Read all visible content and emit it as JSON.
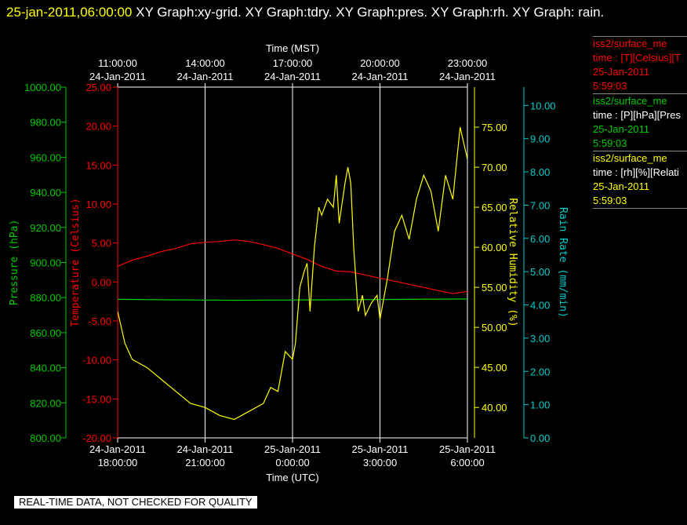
{
  "header": {
    "timestamp": "25-jan-2011,06:00:00",
    "title": "XY Graph:xy-grid.  XY Graph:tdry.  XY Graph:pres.  XY Graph:rh.  XY Graph: rain."
  },
  "footer": {
    "notice": "REAL-TIME DATA, NOT CHECKED FOR QUALITY"
  },
  "legend": [
    {
      "name": "iss2/surface_me",
      "units": "time : [T][Celsius][T",
      "date": "25-Jan-2011",
      "time": "5:59:03",
      "color": "#ff0000"
    },
    {
      "name": "iss2/surface_me",
      "units": "time : [P][hPa][Pres",
      "date": "25-Jan-2011",
      "time": "5:59:03",
      "color": "#00cc00"
    },
    {
      "name": "iss2/surface_me",
      "units": "time : [rh][%][Relati",
      "date": "25-Jan-2011",
      "time": "5:59:03",
      "color": "#ffff00"
    }
  ],
  "chart_data": {
    "type": "line",
    "title": "",
    "top_axis": {
      "label": "Time (MST)",
      "ticks": [
        {
          "date": "24-Jan-2011",
          "time": "11:00:00",
          "hours": 0
        },
        {
          "date": "24-Jan-2011",
          "time": "14:00:00",
          "hours": 3
        },
        {
          "date": "24-Jan-2011",
          "time": "17:00:00",
          "hours": 6
        },
        {
          "date": "24-Jan-2011",
          "time": "20:00:00",
          "hours": 9
        },
        {
          "date": "24-Jan-2011",
          "time": "23:00:00",
          "hours": 12
        }
      ]
    },
    "bottom_axis": {
      "label": "Time (UTC)",
      "ticks": [
        {
          "date": "24-Jan-2011",
          "time": "18:00:00",
          "hours": 0
        },
        {
          "date": "24-Jan-2011",
          "time": "21:00:00",
          "hours": 3
        },
        {
          "date": "25-Jan-2011",
          "time": "0:00:00",
          "hours": 6
        },
        {
          "date": "25-Jan-2011",
          "time": "3:00:00",
          "hours": 9
        },
        {
          "date": "25-Jan-2011",
          "time": "6:00:00",
          "hours": 12
        }
      ],
      "xlim_hours": [
        0,
        12
      ]
    },
    "grid": true,
    "axes": {
      "pressure": {
        "label": "Pressure (hPa)",
        "color": "#00cc00",
        "ylim": [
          800,
          1000
        ],
        "ticks": [
          "800.00",
          "820.00",
          "840.00",
          "860.00",
          "880.00",
          "900.00",
          "920.00",
          "940.00",
          "960.00",
          "980.00",
          "1000.00"
        ]
      },
      "temperature": {
        "label": "Temperature (Celsius)",
        "color": "#ff0000",
        "ylim": [
          -20,
          25
        ],
        "ticks": [
          "-20.00",
          "-15.00",
          "-10.00",
          "-5.00",
          "0.00",
          "5.00",
          "10.00",
          "15.00",
          "20.00",
          "25.00"
        ]
      },
      "humidity": {
        "label": "Relative Humidity (%)",
        "color": "#ffff00",
        "ylim": [
          36.2,
          80
        ],
        "ticks": [
          "40.00",
          "45.00",
          "50.00",
          "55.00",
          "60.00",
          "65.00",
          "70.00",
          "75.00"
        ]
      },
      "rain": {
        "label": "Rain Rate (mm/min)",
        "color": "#00cccc",
        "ylim": [
          0,
          10.55
        ],
        "ticks": [
          "0.00",
          "1.00",
          "2.00",
          "3.00",
          "4.00",
          "5.00",
          "6.00",
          "7.00",
          "8.00",
          "9.00",
          "10.00"
        ]
      }
    },
    "series": [
      {
        "name": "tdry",
        "axis": "temperature",
        "color": "#ff0000",
        "x": [
          0,
          0.5,
          1,
          1.5,
          2,
          2.5,
          3,
          3.5,
          4,
          4.5,
          5,
          5.5,
          6,
          6.5,
          7,
          7.5,
          8,
          8.5,
          9,
          9.5,
          10,
          10.5,
          11,
          11.5,
          12
        ],
        "y": [
          2.0,
          2.8,
          3.3,
          3.9,
          4.3,
          4.9,
          5.1,
          5.2,
          5.4,
          5.2,
          4.8,
          4.3,
          3.6,
          2.9,
          2.0,
          1.4,
          1.3,
          0.9,
          0.5,
          0.1,
          -0.3,
          -0.7,
          -1.1,
          -1.5,
          -1.2
        ]
      },
      {
        "name": "pres",
        "axis": "pressure",
        "color": "#00cc00",
        "x": [
          0,
          2,
          4,
          6,
          8,
          10,
          12
        ],
        "y": [
          879.0,
          878.7,
          878.5,
          878.6,
          878.8,
          879.0,
          879.2
        ]
      },
      {
        "name": "rh",
        "axis": "humidity",
        "color": "#ffff00",
        "x": [
          0,
          0.25,
          0.5,
          0.75,
          1,
          1.5,
          2,
          2.5,
          3,
          3.5,
          4,
          4.5,
          5,
          5.25,
          5.5,
          5.75,
          6,
          6.1,
          6.25,
          6.4,
          6.5,
          6.6,
          6.75,
          6.9,
          7.0,
          7.2,
          7.4,
          7.5,
          7.6,
          7.8,
          7.9,
          8.0,
          8.1,
          8.25,
          8.4,
          8.5,
          8.7,
          8.9,
          9.0,
          9.25,
          9.5,
          9.75,
          10,
          10.25,
          10.5,
          10.75,
          11,
          11.25,
          11.5,
          11.75,
          12
        ],
        "y": [
          52.0,
          48.0,
          46.0,
          45.5,
          45.0,
          43.5,
          42.0,
          40.5,
          40.0,
          39.0,
          38.5,
          39.5,
          40.5,
          42.5,
          42.0,
          47.0,
          46.0,
          48.0,
          55.0,
          57.0,
          58.0,
          52.0,
          60.0,
          65.0,
          64.0,
          66.0,
          65.0,
          69.0,
          63.0,
          68.0,
          70.0,
          68.0,
          60.0,
          52.0,
          54.0,
          51.5,
          53.0,
          54.0,
          51.0,
          56.0,
          62.0,
          64.0,
          61.0,
          66.0,
          69.0,
          67.0,
          62.0,
          69.0,
          66.0,
          75.0,
          71.0
        ]
      }
    ]
  }
}
